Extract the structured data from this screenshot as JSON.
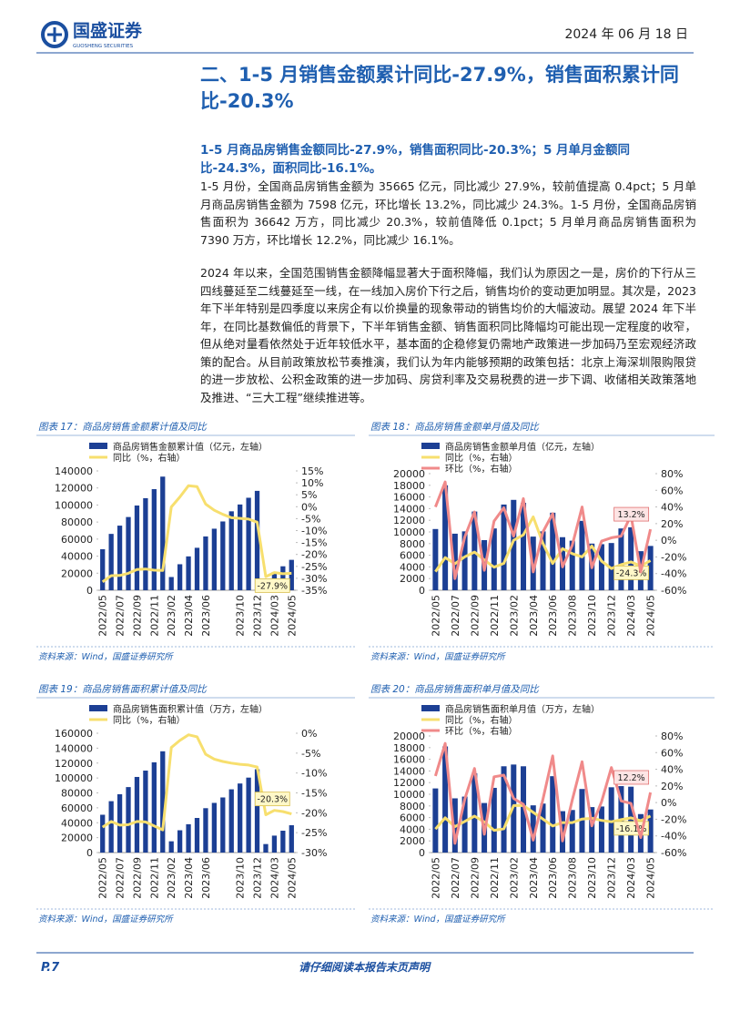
{
  "header": {
    "company": "国盛证券",
    "company_en": "GUOSHENG SECURITIES",
    "date": "2024 年 06 月 18 日"
  },
  "section_title": "二、1-5 月销售金额累计同比-27.9%，销售面积累计同比-20.3%",
  "paragraphs": [
    "1-5 月商品房销售金额同比-27.9%，销售面积同比-20.3%；5 月单月金额同比-24.3%，面积同比-16.1%。",
    "1-5 月份，全国商品房销售金额为 35665 亿元，同比减少 27.9%，较前值提高 0.4pct；5 月单月商品房销售金额为 7598 亿元，环比增长 13.2%，同比减少 24.3%。1-5 月份，全国商品房销售面积为 36642 万方，同比减少 20.3%，较前值降低 0.1pct；5 月单月商品房销售面积为 7390 万方，环比增长 12.2%，同比减少 16.1%。",
    "2024 年以来，全国范围销售金额降幅显著大于面积降幅，我们认为原因之一是，房价的下行从三四线蔓延至二线蔓延至一线，在一线加入房价下行之后，销售均价的变动更加明显。其次是，2023 年下半年特别是四季度以来房企有以价换量的现象带动的销售均价的大幅波动。展望 2024 年下半年，在同比基数偏低的背景下，下半年销售金额、销售面积同比降幅均可能出现一定程度的收窄，但从绝对量看依然处于近年较低水平，基本面的企稳修复仍需地产政策进一步加码乃至宏观经济政策的配合。从目前政策放松节奏推演，我们认为年内能够预期的政策包括：北京上海深圳限购限贷的进一步放松、公积金政策的进一步加码、房贷利率及交易税费的进一步下调、收储相关政策落地及推进、“三大工程”继续推进等。"
  ],
  "footer": {
    "page": "P.7",
    "notice": "请仔细阅读本报告末页声明"
  },
  "chart_data": [
    {
      "type": "combo",
      "title": "图表 17：商品房销售金额累计值及同比",
      "source": "资料来源：Wind，国盛证券研究所",
      "categories": [
        "2022/05",
        null,
        "2022/07",
        null,
        "2022/09",
        null,
        "2022/11",
        null,
        "2023/02",
        null,
        "2023/04",
        null,
        "2023/06",
        null,
        null,
        null,
        "2023/10",
        null,
        "2023/12",
        null,
        "2024/03",
        null,
        "2024/05"
      ],
      "ylim": [
        0,
        140000
      ],
      "yticks": [
        0,
        20000,
        40000,
        60000,
        80000,
        100000,
        120000,
        140000
      ],
      "y2lim": [
        -35,
        15
      ],
      "y2ticks": [
        {
          "value": -35,
          "label": "-35%"
        },
        {
          "value": -30,
          "label": "-30%"
        },
        {
          "value": -25,
          "label": "-25%"
        },
        {
          "value": -20,
          "label": "-20%"
        },
        {
          "value": -15,
          "label": "-15%"
        },
        {
          "value": -10,
          "label": "-10%"
        },
        {
          "value": -5,
          "label": "-5%"
        },
        {
          "value": 0,
          "label": "0%"
        },
        {
          "value": 5,
          "label": "5%"
        },
        {
          "value": 10,
          "label": "10%"
        },
        {
          "value": 15,
          "label": "15%"
        }
      ],
      "series": [
        {
          "name": "商品房销售金额累计值（亿元，左轴）",
          "type": "bar",
          "color": "#1c3f94",
          "values": [
            48100,
            66100,
            75800,
            85900,
            99400,
            108000,
            118600,
            133300,
            15500,
            30500,
            39700,
            49800,
            63100,
            72200,
            80700,
            92600,
            100600,
            108500,
            116600,
            10600,
            21400,
            28100,
            35665
          ]
        },
        {
          "name": "同比（%，右轴）",
          "type": "line",
          "axis": "y2",
          "color": "#f7df6e",
          "values": [
            -31.5,
            -28.9,
            -28.8,
            -27.9,
            -26.3,
            -26.1,
            -26.6,
            -26.7,
            -0.1,
            4.1,
            8.8,
            8.4,
            1.1,
            -1.5,
            -3.2,
            -4.6,
            -4.9,
            -5.2,
            -6.5,
            -29.3,
            -27.6,
            -28.1,
            -27.9
          ],
          "value_labels": [
            null,
            null,
            null,
            null,
            null,
            null,
            null,
            null,
            null,
            null,
            null,
            null,
            null,
            null,
            null,
            null,
            null,
            null,
            null,
            null,
            null,
            null,
            "-27.9%"
          ]
        }
      ]
    },
    {
      "type": "combo",
      "title": "图表 18：商品房销售金额单月值及同比",
      "source": "资料来源：Wind，国盛证券研究所",
      "categories": [
        "2022/05",
        null,
        "2022/07",
        null,
        "2022/09",
        null,
        "2022/11",
        null,
        "2023/02",
        null,
        "2023/04",
        null,
        "2023/06",
        null,
        "2023/08",
        null,
        "2023/10",
        null,
        "2023/12",
        null,
        "2024/03",
        null,
        "2024/05"
      ],
      "ylim": [
        0,
        20000
      ],
      "yticks": [
        0,
        2000,
        4000,
        6000,
        8000,
        10000,
        12000,
        14000,
        16000,
        18000,
        20000
      ],
      "y2lim": [
        -60,
        80
      ],
      "y2ticks": [
        {
          "value": -60,
          "label": "-60%"
        },
        {
          "value": -40,
          "label": "-40%"
        },
        {
          "value": -20,
          "label": "-20%"
        },
        {
          "value": 0,
          "label": "0%"
        },
        {
          "value": 20,
          "label": "20%"
        },
        {
          "value": 40,
          "label": "40%"
        },
        {
          "value": 60,
          "label": "60%"
        },
        {
          "value": 80,
          "label": "80%"
        }
      ],
      "series": [
        {
          "name": "商品房销售金额单月值（亿元，左轴）",
          "type": "bar",
          "color": "#1c3f94",
          "values": [
            10500,
            18000,
            9700,
            10100,
            13500,
            8600,
            10600,
            14700,
            15500,
            15000,
            9200,
            10100,
            13300,
            9100,
            8500,
            11900,
            8000,
            7900,
            8100,
            10600,
            10800,
            6700,
            7598
          ]
        },
        {
          "name": "同比（%，右轴）",
          "type": "line",
          "axis": "y2",
          "color": "#f7df6e",
          "values": [
            -37.7,
            -20.8,
            -28.2,
            -19.9,
            -14.2,
            -23.7,
            -32.3,
            -27.7,
            -0.1,
            6.5,
            28,
            -3.7,
            -27.9,
            -10,
            -16,
            -20,
            -7,
            -25,
            -34,
            -29.3,
            -26,
            -31,
            -24.3
          ],
          "value_labels": [
            null,
            null,
            null,
            null,
            null,
            null,
            null,
            null,
            null,
            null,
            null,
            null,
            null,
            null,
            null,
            null,
            null,
            null,
            null,
            null,
            null,
            null,
            "-24.3%"
          ]
        },
        {
          "name": "环比（%，右轴）",
          "type": "line",
          "axis": "y2",
          "color": "#f08a8a",
          "values": [
            40,
            70,
            -46,
            4,
            34,
            -36,
            23,
            39,
            5,
            50,
            -38,
            10,
            32,
            -32,
            -6,
            40,
            -33,
            -1,
            3,
            5,
            30,
            -38,
            13.2
          ],
          "value_labels": [
            null,
            null,
            null,
            null,
            null,
            null,
            null,
            null,
            null,
            null,
            null,
            null,
            null,
            null,
            null,
            null,
            null,
            null,
            null,
            null,
            null,
            null,
            "13.2%"
          ]
        }
      ]
    },
    {
      "type": "combo",
      "title": "图表 19：商品房销售面积累计值及同比",
      "source": "资料来源：Wind，国盛证券研究所",
      "categories": [
        "2022/05",
        null,
        "2022/07",
        null,
        "2022/09",
        null,
        "2022/11",
        null,
        "2023/02",
        null,
        "2023/04",
        null,
        "2023/06",
        null,
        null,
        null,
        "2023/10",
        null,
        "2023/12",
        null,
        "2024/03",
        null,
        "2024/05"
      ],
      "ylim": [
        0,
        160000
      ],
      "yticks": [
        0,
        20000,
        40000,
        60000,
        80000,
        100000,
        120000,
        140000,
        160000
      ],
      "y2lim": [
        -30,
        0
      ],
      "y2ticks": [
        {
          "value": -30,
          "label": "-30%"
        },
        {
          "value": -25,
          "label": "-25%"
        },
        {
          "value": -20,
          "label": "-20%"
        },
        {
          "value": -15,
          "label": "-15%"
        },
        {
          "value": -10,
          "label": "-10%"
        },
        {
          "value": -5,
          "label": "-5%"
        },
        {
          "value": 0,
          "label": "0%"
        }
      ],
      "series": [
        {
          "name": "商品房销售面积累计值（万方，左轴）",
          "type": "bar",
          "color": "#1c3f94",
          "values": [
            50700,
            68900,
            78200,
            87800,
            101400,
            109900,
            121000,
            135800,
            15100,
            29900,
            38000,
            46400,
            59500,
            66600,
            73900,
            84800,
            92600,
            100500,
            111700,
            11400,
            22700,
            29300,
            36642
          ]
        },
        {
          "name": "同比（%，右轴）",
          "type": "line",
          "axis": "y2",
          "color": "#f7df6e",
          "values": [
            -23.6,
            -22.2,
            -23.1,
            -23.0,
            -22.2,
            -22.3,
            -23.3,
            -24.3,
            -3.6,
            -1.8,
            -0.4,
            -0.9,
            -5.3,
            -6.5,
            -7.1,
            -7.5,
            -7.8,
            -8.0,
            -8.5,
            -20.5,
            -19.4,
            -19.7,
            -20.3
          ],
          "value_labels": [
            null,
            null,
            null,
            null,
            null,
            null,
            null,
            null,
            null,
            null,
            null,
            null,
            null,
            null,
            null,
            null,
            null,
            null,
            null,
            null,
            null,
            null,
            "-20.3%"
          ]
        }
      ]
    },
    {
      "type": "combo",
      "title": "图表 20：商品房销售面积单月值及同比",
      "source": "资料来源：Wind，国盛证券研究所",
      "categories": [
        "2022/05",
        null,
        "2022/07",
        null,
        "2022/09",
        null,
        "2022/11",
        null,
        "2023/02",
        null,
        "2023/04",
        null,
        "2023/06",
        null,
        "2023/08",
        null,
        "2023/10",
        null,
        "2023/12",
        null,
        "2024/03",
        null,
        "2024/05"
      ],
      "ylim": [
        0,
        20000
      ],
      "yticks": [
        0,
        2000,
        4000,
        6000,
        8000,
        10000,
        12000,
        14000,
        16000,
        18000,
        20000
      ],
      "y2lim": [
        -60,
        80
      ],
      "y2ticks": [
        {
          "value": -60,
          "label": "-60%"
        },
        {
          "value": -40,
          "label": "-40%"
        },
        {
          "value": -20,
          "label": "-20%"
        },
        {
          "value": 0,
          "label": "0%"
        },
        {
          "value": 20,
          "label": "20%"
        },
        {
          "value": 40,
          "label": "40%"
        },
        {
          "value": 60,
          "label": "60%"
        },
        {
          "value": 80,
          "label": "80%"
        }
      ],
      "series": [
        {
          "name": "商品房销售面积单月值（万方，左轴）",
          "type": "bar",
          "color": "#1c3f94",
          "values": [
            11000,
            18200,
            9300,
            9600,
            13600,
            8500,
            11100,
            14800,
            15100,
            14800,
            8100,
            8400,
            13100,
            7100,
            7300,
            10900,
            7800,
            7900,
            11200,
            11400,
            11300,
            6600,
            7390
          ]
        },
        {
          "name": "同比（%，右轴）",
          "type": "line",
          "axis": "y2",
          "color": "#f7df6e",
          "values": [
            -31.8,
            -18.3,
            -28.9,
            -22.6,
            -16.2,
            -23.2,
            -33.3,
            -31.5,
            -3.6,
            -3.5,
            -11.8,
            -19.7,
            -28.1,
            -24.0,
            -24.0,
            -19.8,
            -18.9,
            -21.4,
            -23.0,
            -20.5,
            -18.3,
            -21.8,
            -16.1
          ],
          "value_labels": [
            null,
            null,
            null,
            null,
            null,
            null,
            null,
            null,
            null,
            null,
            null,
            null,
            null,
            null,
            null,
            null,
            null,
            null,
            null,
            null,
            null,
            null,
            "-16.1%"
          ]
        },
        {
          "name": "环比（%，右轴）",
          "type": "line",
          "axis": "y2",
          "color": "#f08a8a",
          "values": [
            32,
            71,
            -49,
            4,
            41,
            -38,
            31,
            33,
            5,
            -2,
            -45,
            4,
            56,
            -46,
            3,
            49,
            -28,
            1,
            42,
            2,
            -1,
            -42,
            12.2
          ],
          "value_labels": [
            null,
            null,
            null,
            null,
            null,
            null,
            null,
            null,
            null,
            null,
            null,
            null,
            null,
            null,
            null,
            null,
            null,
            null,
            null,
            null,
            null,
            null,
            "12.2%"
          ]
        }
      ]
    }
  ]
}
